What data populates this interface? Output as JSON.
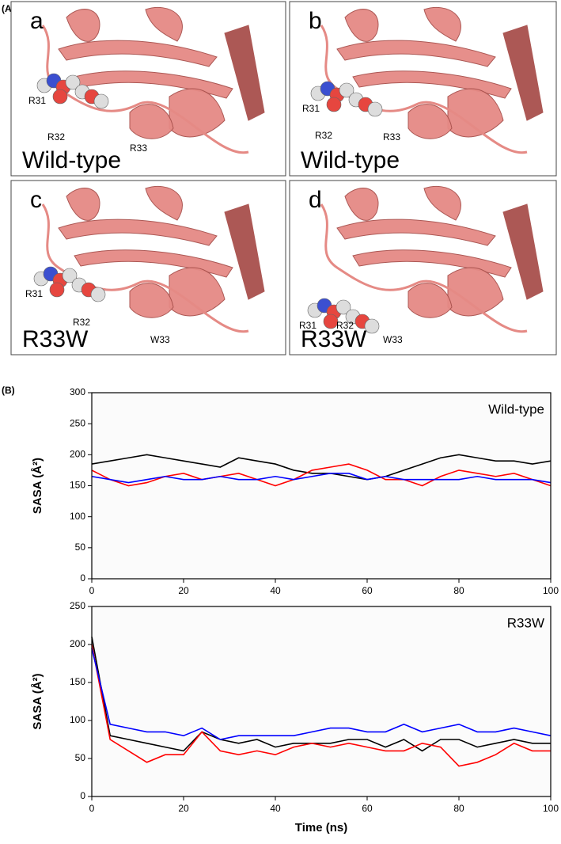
{
  "panel_a": {
    "label": "(A)",
    "panels": [
      {
        "letter": "a",
        "variant": "Wild-type",
        "residues": [
          "R31",
          "R32",
          "R33"
        ]
      },
      {
        "letter": "b",
        "variant": "Wild-type",
        "residues": [
          "R31",
          "R32",
          "R33"
        ]
      },
      {
        "letter": "c",
        "variant": "R33W",
        "residues": [
          "R31",
          "R32",
          "W33"
        ]
      },
      {
        "letter": "d",
        "variant": "R33W",
        "residues": [
          "R31",
          "R32",
          "W33"
        ]
      }
    ]
  },
  "panel_b": {
    "label": "(B)"
  },
  "chart_data": [
    {
      "type": "line",
      "annotation": "Wild-type",
      "ylabel": "SASA (Å²)",
      "x": [
        0,
        4,
        8,
        12,
        16,
        20,
        24,
        28,
        32,
        36,
        40,
        44,
        48,
        52,
        56,
        60,
        64,
        68,
        72,
        76,
        80,
        84,
        88,
        92,
        96,
        100
      ],
      "series": [
        {
          "color": "#000000",
          "values": [
            185,
            190,
            195,
            200,
            195,
            190,
            185,
            180,
            195,
            190,
            185,
            175,
            170,
            170,
            165,
            160,
            165,
            175,
            185,
            195,
            200,
            195,
            190,
            190,
            185,
            190
          ]
        },
        {
          "color": "#ff0000",
          "values": [
            175,
            160,
            150,
            155,
            165,
            170,
            160,
            165,
            170,
            160,
            150,
            160,
            175,
            180,
            185,
            175,
            160,
            160,
            150,
            165,
            175,
            170,
            165,
            170,
            160,
            150
          ]
        },
        {
          "color": "#0000ff",
          "values": [
            165,
            160,
            155,
            160,
            165,
            160,
            160,
            165,
            160,
            160,
            165,
            160,
            165,
            170,
            170,
            160,
            165,
            160,
            160,
            160,
            160,
            165,
            160,
            160,
            160,
            155
          ]
        }
      ],
      "xlim": [
        0,
        100
      ],
      "ylim": [
        0,
        300
      ],
      "xticks": [
        0,
        20,
        40,
        60,
        80,
        100
      ],
      "yticks": [
        0,
        50,
        100,
        150,
        200,
        250,
        300
      ]
    },
    {
      "type": "line",
      "annotation": "R33W",
      "ylabel": "SASA (Å²)",
      "xlabel": "Time (ns)",
      "x": [
        0,
        4,
        8,
        12,
        16,
        20,
        24,
        28,
        32,
        36,
        40,
        44,
        48,
        52,
        56,
        60,
        64,
        68,
        72,
        76,
        80,
        84,
        88,
        92,
        96,
        100
      ],
      "series": [
        {
          "color": "#000000",
          "values": [
            210,
            80,
            75,
            70,
            65,
            60,
            85,
            75,
            70,
            75,
            65,
            70,
            70,
            70,
            75,
            75,
            65,
            75,
            60,
            75,
            75,
            65,
            70,
            75,
            70,
            70
          ]
        },
        {
          "color": "#ff0000",
          "values": [
            200,
            75,
            60,
            45,
            55,
            55,
            85,
            60,
            55,
            60,
            55,
            65,
            70,
            65,
            70,
            65,
            60,
            60,
            70,
            65,
            40,
            45,
            55,
            70,
            60,
            60
          ]
        },
        {
          "color": "#0000ff",
          "values": [
            195,
            95,
            90,
            85,
            85,
            80,
            90,
            75,
            80,
            80,
            80,
            80,
            85,
            90,
            90,
            85,
            85,
            95,
            85,
            90,
            95,
            85,
            85,
            90,
            85,
            80
          ]
        }
      ],
      "xlim": [
        0,
        100
      ],
      "ylim": [
        0,
        250
      ],
      "xticks": [
        0,
        20,
        40,
        60,
        80,
        100
      ],
      "yticks": [
        0,
        50,
        100,
        150,
        200,
        250
      ]
    }
  ]
}
